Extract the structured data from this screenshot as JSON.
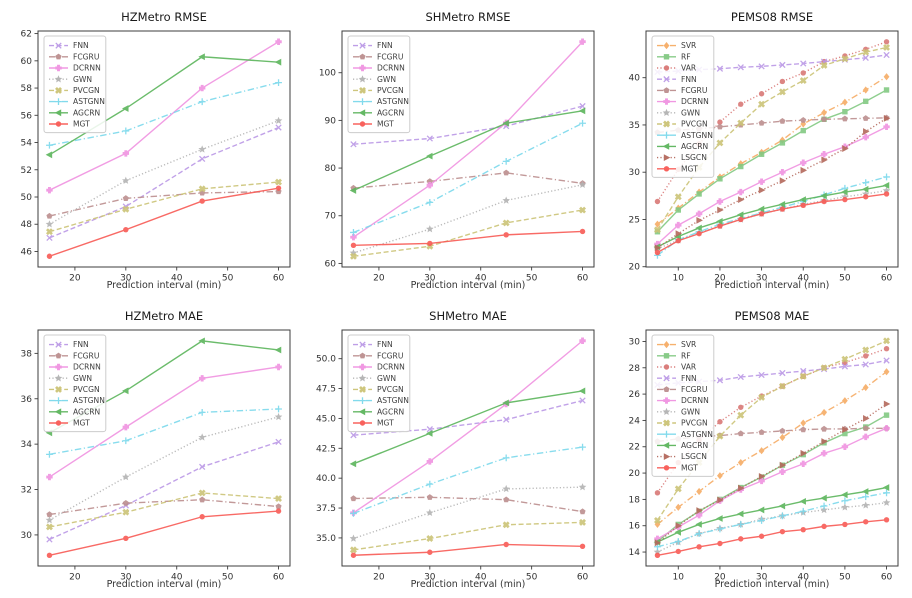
{
  "figure": {
    "background": "#ffffff",
    "rows": 2,
    "cols": 3,
    "xlabel": "Prediction interval (min)"
  },
  "styles": {
    "FNN": {
      "color": "#bb99e6",
      "dash": "dashed",
      "marker": "x"
    },
    "FCGRU": {
      "color": "#bc8f8f",
      "dash": "dashdot",
      "marker": "p"
    },
    "DCRNN": {
      "color": "#f093e1",
      "dash": "solid",
      "marker": "P"
    },
    "GWN": {
      "color": "#b3b3b3",
      "dash": "dotted",
      "marker": "*"
    },
    "PVCGN": {
      "color": "#ccc477",
      "dash": "dashed",
      "marker": "X"
    },
    "ASTGNN": {
      "color": "#7cd9ec",
      "dash": "dashdot",
      "marker": "+"
    },
    "AGCRN": {
      "color": "#5cb55c",
      "dash": "solid",
      "marker": "<"
    },
    "MGT": {
      "color": "#f85a55",
      "dash": "solid",
      "marker": "o"
    },
    "SVR": {
      "color": "#f6ac66",
      "dash": "dashdot",
      "marker": "D"
    },
    "RF": {
      "color": "#82c982",
      "dash": "solid",
      "marker": "s"
    },
    "VAR": {
      "color": "#d97876",
      "dash": "dotted",
      "marker": "o"
    },
    "LSGCN": {
      "color": "#b4695c",
      "dash": "dotted",
      "marker": ">"
    }
  },
  "chart_data": [
    {
      "type": "line",
      "title": "HZMetro RMSE",
      "xlabel": "Prediction interval (min)",
      "legend_position": "upper left",
      "x": [
        15,
        30,
        45,
        60
      ],
      "xticks": [
        20,
        30,
        40,
        50,
        60
      ],
      "xlim": [
        12.75,
        62.25
      ],
      "ylim": [
        44.86,
        62.19
      ],
      "yticks": [
        46,
        48,
        50,
        52,
        54,
        56,
        58,
        60,
        62
      ],
      "ytick_decimals": 0,
      "series": [
        {
          "name": "FNN",
          "values": [
            47.0,
            49.3,
            52.8,
            55.1
          ]
        },
        {
          "name": "FCGRU",
          "values": [
            48.6,
            49.9,
            50.3,
            50.4
          ]
        },
        {
          "name": "DCRNN",
          "values": [
            50.5,
            53.2,
            58.0,
            61.4
          ]
        },
        {
          "name": "GWN",
          "values": [
            48.0,
            51.2,
            53.5,
            55.6
          ]
        },
        {
          "name": "PVCGN",
          "values": [
            47.45,
            49.1,
            50.6,
            51.1
          ]
        },
        {
          "name": "ASTGNN",
          "values": [
            53.8,
            54.85,
            57.0,
            58.4
          ]
        },
        {
          "name": "AGCRN",
          "values": [
            53.1,
            56.5,
            60.3,
            59.9
          ]
        },
        {
          "name": "MGT",
          "values": [
            45.65,
            47.6,
            49.7,
            50.65
          ]
        }
      ]
    },
    {
      "type": "line",
      "title": "SHMetro RMSE",
      "xlabel": "Prediction interval (min)",
      "legend_position": "upper left",
      "x": [
        15,
        30,
        45,
        60
      ],
      "xticks": [
        20,
        30,
        40,
        50,
        60
      ],
      "xlim": [
        12.75,
        62.25
      ],
      "ylim": [
        59.25,
        108.75
      ],
      "yticks": [
        60,
        70,
        80,
        90,
        100
      ],
      "ytick_decimals": 0,
      "series": [
        {
          "name": "FNN",
          "values": [
            85.0,
            86.2,
            88.8,
            93.0
          ]
        },
        {
          "name": "FCGRU",
          "values": [
            75.8,
            77.2,
            79.0,
            76.8
          ]
        },
        {
          "name": "DCRNN",
          "values": [
            65.5,
            76.4,
            89.5,
            106.5
          ]
        },
        {
          "name": "GWN",
          "values": [
            62.2,
            67.2,
            73.2,
            76.5
          ]
        },
        {
          "name": "PVCGN",
          "values": [
            61.5,
            63.6,
            68.5,
            71.2
          ]
        },
        {
          "name": "ASTGNN",
          "values": [
            66.5,
            72.8,
            81.4,
            89.4
          ]
        },
        {
          "name": "AGCRN",
          "values": [
            75.3,
            82.5,
            89.4,
            92.0
          ]
        },
        {
          "name": "MGT",
          "values": [
            63.8,
            64.2,
            66.0,
            66.7
          ]
        }
      ]
    },
    {
      "type": "line",
      "title": "PEMS08 RMSE",
      "xlabel": "Prediction interval (min)",
      "legend_position": "upper left",
      "x": [
        5,
        10,
        15,
        20,
        25,
        30,
        35,
        40,
        45,
        50,
        55,
        60
      ],
      "xticks": [
        10,
        20,
        30,
        40,
        50,
        60
      ],
      "xlim": [
        2.25,
        62.75
      ],
      "ylim": [
        19.97,
        44.94
      ],
      "yticks": [
        20,
        25,
        30,
        35,
        40
      ],
      "ytick_decimals": 0,
      "series": [
        {
          "name": "SVR",
          "values": [
            24.5,
            26.2,
            27.9,
            29.5,
            30.9,
            32.1,
            33.4,
            35.1,
            36.3,
            37.4,
            38.7,
            40.1
          ]
        },
        {
          "name": "RF",
          "values": [
            23.7,
            26.0,
            27.7,
            29.3,
            30.6,
            31.9,
            33.1,
            34.4,
            35.6,
            36.4,
            37.5,
            38.7
          ]
        },
        {
          "name": "VAR",
          "values": [
            26.9,
            30.3,
            33.0,
            35.3,
            37.2,
            38.3,
            39.6,
            40.5,
            41.7,
            42.3,
            43.0,
            43.8
          ]
        },
        {
          "name": "FNN",
          "values": [
            40.6,
            40.7,
            40.85,
            40.95,
            41.1,
            41.2,
            41.35,
            41.5,
            41.7,
            41.9,
            42.1,
            42.4
          ]
        },
        {
          "name": "FCGRU",
          "values": [
            34.2,
            34.45,
            34.6,
            34.8,
            35.0,
            35.2,
            35.4,
            35.5,
            35.6,
            35.65,
            35.7,
            35.75
          ]
        },
        {
          "name": "DCRNN",
          "values": [
            22.4,
            24.4,
            25.6,
            26.9,
            27.9,
            29.0,
            30.0,
            31.0,
            31.9,
            32.7,
            33.7,
            34.8
          ]
        },
        {
          "name": "GWN",
          "values": [
            21.9,
            22.8,
            23.6,
            24.3,
            25.0,
            25.6,
            26.1,
            26.6,
            27.0,
            27.4,
            27.7,
            28.05
          ]
        },
        {
          "name": "PVCGN",
          "values": [
            23.9,
            27.4,
            30.5,
            33.1,
            35.2,
            37.2,
            38.5,
            39.7,
            41.3,
            42.0,
            42.7,
            43.2
          ]
        },
        {
          "name": "ASTGNN",
          "values": [
            21.2,
            22.85,
            23.7,
            24.5,
            25.1,
            25.7,
            26.3,
            26.9,
            27.6,
            28.3,
            28.9,
            29.5
          ]
        },
        {
          "name": "AGCRN",
          "values": [
            22.1,
            23.2,
            24.1,
            24.8,
            25.5,
            26.1,
            26.6,
            27.1,
            27.5,
            27.9,
            28.2,
            28.6
          ]
        },
        {
          "name": "LSGCN",
          "values": [
            22.0,
            23.5,
            24.9,
            26.0,
            27.1,
            28.1,
            29.1,
            30.2,
            31.3,
            32.5,
            34.3,
            35.7
          ]
        },
        {
          "name": "MGT",
          "values": [
            21.5,
            22.75,
            23.5,
            24.3,
            25.0,
            25.6,
            26.1,
            26.5,
            26.9,
            27.1,
            27.4,
            27.7
          ]
        }
      ]
    },
    {
      "type": "line",
      "title": "HZMetro MAE",
      "xlabel": "Prediction interval (min)",
      "legend_position": "upper left",
      "x": [
        15,
        30,
        45,
        60
      ],
      "xticks": [
        20,
        30,
        40,
        50,
        60
      ],
      "xlim": [
        12.75,
        62.25
      ],
      "ylim": [
        28.63,
        39.03
      ],
      "yticks": [
        30,
        32,
        34,
        36,
        38
      ],
      "ytick_decimals": 0,
      "series": [
        {
          "name": "FNN",
          "values": [
            29.8,
            31.3,
            33.0,
            34.1
          ]
        },
        {
          "name": "FCGRU",
          "values": [
            30.9,
            31.4,
            31.55,
            31.25
          ]
        },
        {
          "name": "DCRNN",
          "values": [
            32.55,
            34.75,
            36.9,
            37.4
          ]
        },
        {
          "name": "GWN",
          "values": [
            30.65,
            32.55,
            34.3,
            35.2
          ]
        },
        {
          "name": "PVCGN",
          "values": [
            30.35,
            31.0,
            31.85,
            31.6
          ]
        },
        {
          "name": "ASTGNN",
          "values": [
            33.55,
            34.15,
            35.4,
            35.55
          ]
        },
        {
          "name": "AGCRN",
          "values": [
            34.5,
            36.35,
            38.55,
            38.15
          ]
        },
        {
          "name": "MGT",
          "values": [
            29.1,
            29.85,
            30.8,
            31.05
          ]
        }
      ]
    },
    {
      "type": "line",
      "title": "SHMetro MAE",
      "xlabel": "Prediction interval (min)",
      "legend_position": "upper left",
      "x": [
        15,
        30,
        45,
        60
      ],
      "xticks": [
        20,
        30,
        40,
        50,
        60
      ],
      "xlim": [
        12.75,
        62.25
      ],
      "ylim": [
        32.65,
        52.4
      ],
      "yticks": [
        35.0,
        37.5,
        40.0,
        42.5,
        45.0,
        47.5,
        50.0
      ],
      "ytick_decimals": 1,
      "series": [
        {
          "name": "FNN",
          "values": [
            43.6,
            44.1,
            44.9,
            46.5
          ]
        },
        {
          "name": "FCGRU",
          "values": [
            38.3,
            38.4,
            38.2,
            37.2
          ]
        },
        {
          "name": "DCRNN",
          "values": [
            37.1,
            41.4,
            46.2,
            51.5
          ]
        },
        {
          "name": "GWN",
          "values": [
            34.95,
            37.1,
            39.1,
            39.25
          ]
        },
        {
          "name": "PVCGN",
          "values": [
            34.0,
            34.95,
            36.1,
            36.3
          ]
        },
        {
          "name": "ASTGNN",
          "values": [
            37.05,
            39.5,
            41.7,
            42.6
          ]
        },
        {
          "name": "AGCRN",
          "values": [
            41.2,
            43.75,
            46.3,
            47.3
          ]
        },
        {
          "name": "MGT",
          "values": [
            33.55,
            33.8,
            34.45,
            34.3
          ]
        }
      ]
    },
    {
      "type": "line",
      "title": "PEMS08 MAE",
      "xlabel": "Prediction interval (min)",
      "legend_position": "upper left",
      "x": [
        5,
        10,
        15,
        20,
        25,
        30,
        35,
        40,
        45,
        50,
        55,
        60
      ],
      "xticks": [
        10,
        20,
        30,
        40,
        50,
        60
      ],
      "xlim": [
        2.25,
        62.75
      ],
      "ylim": [
        12.94,
        30.87
      ],
      "yticks": [
        14,
        16,
        18,
        20,
        22,
        24,
        26,
        28,
        30
      ],
      "ytick_decimals": 0,
      "series": [
        {
          "name": "SVR",
          "values": [
            16.1,
            17.4,
            18.6,
            19.8,
            20.8,
            21.7,
            22.7,
            23.8,
            24.6,
            25.5,
            26.5,
            27.7
          ]
        },
        {
          "name": "RF",
          "values": [
            14.8,
            16.1,
            17.1,
            18.0,
            18.9,
            19.7,
            20.6,
            21.4,
            22.3,
            23.0,
            23.5,
            24.4
          ]
        },
        {
          "name": "VAR",
          "values": [
            18.5,
            20.8,
            22.5,
            23.9,
            25.0,
            25.85,
            26.6,
            27.35,
            28.0,
            28.4,
            28.9,
            29.45
          ]
        },
        {
          "name": "FNN",
          "values": [
            26.7,
            26.85,
            26.95,
            27.05,
            27.3,
            27.45,
            27.6,
            27.75,
            27.9,
            28.1,
            28.25,
            28.55
          ]
        },
        {
          "name": "FCGRU",
          "values": [
            22.4,
            22.6,
            22.75,
            22.85,
            23.0,
            23.1,
            23.2,
            23.3,
            23.35,
            23.35,
            23.4,
            23.4
          ]
        },
        {
          "name": "DCRNN",
          "values": [
            15.0,
            15.9,
            16.8,
            17.9,
            18.75,
            19.4,
            20.1,
            20.7,
            21.5,
            22.0,
            22.75,
            23.4
          ]
        },
        {
          "name": "GWN",
          "values": [
            14.0,
            14.75,
            15.4,
            15.8,
            16.1,
            16.5,
            16.75,
            17.0,
            17.2,
            17.4,
            17.55,
            17.75
          ]
        },
        {
          "name": "PVCGN",
          "values": [
            16.4,
            18.8,
            20.8,
            22.8,
            24.4,
            25.75,
            26.6,
            27.35,
            28.0,
            28.65,
            29.35,
            30.05
          ]
        },
        {
          "name": "ASTGNN",
          "values": [
            14.4,
            14.8,
            15.4,
            15.75,
            16.1,
            16.4,
            16.75,
            17.1,
            17.5,
            17.9,
            18.2,
            18.5
          ]
        },
        {
          "name": "AGCRN",
          "values": [
            14.75,
            15.5,
            16.1,
            16.55,
            16.9,
            17.2,
            17.5,
            17.85,
            18.1,
            18.35,
            18.6,
            18.9
          ]
        },
        {
          "name": "LSGCN",
          "values": [
            14.7,
            16.0,
            17.15,
            17.95,
            18.85,
            19.75,
            20.6,
            21.5,
            22.4,
            23.3,
            24.15,
            25.25
          ]
        },
        {
          "name": "MGT",
          "values": [
            13.75,
            14.05,
            14.4,
            14.65,
            15.0,
            15.2,
            15.55,
            15.7,
            15.95,
            16.1,
            16.3,
            16.45
          ]
        }
      ]
    }
  ]
}
